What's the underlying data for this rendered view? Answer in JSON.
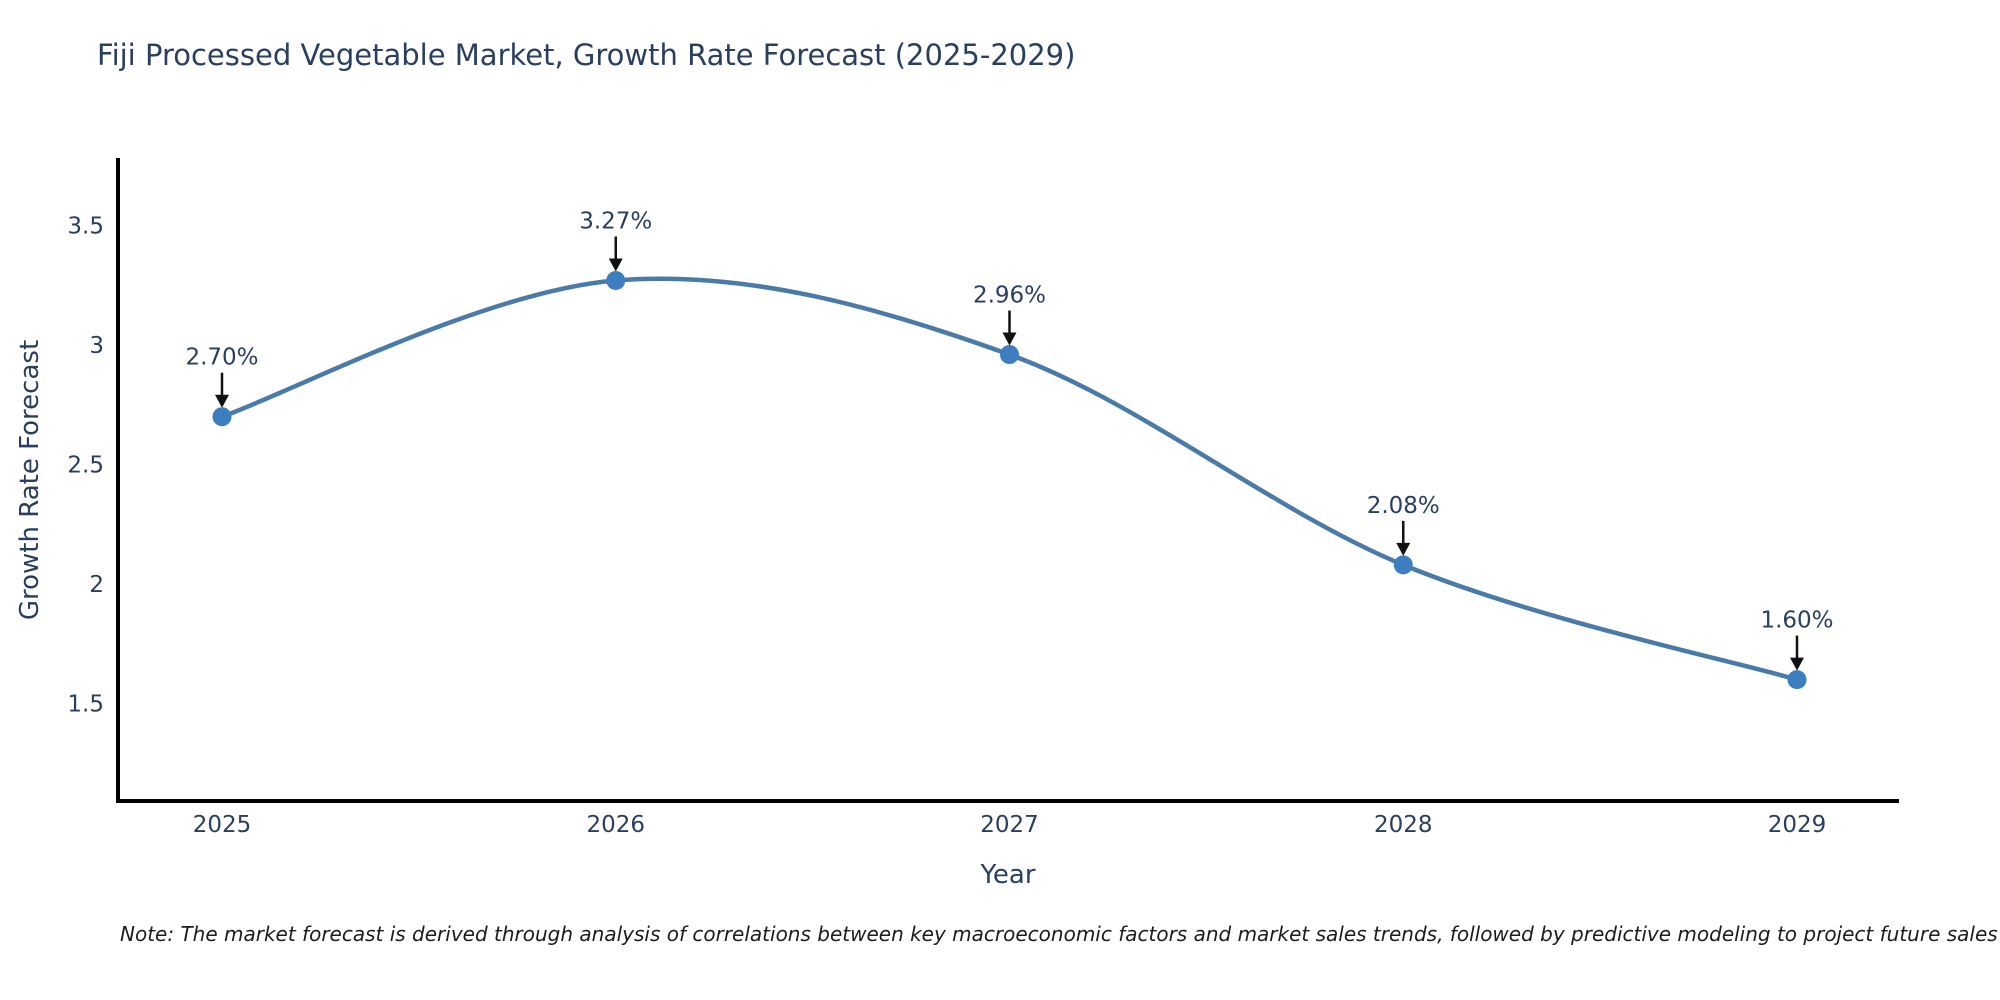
{
  "note": {
    "text": "Note: The market forecast is derived through analysis of correlations between key macroeconomic factors and market sales trends, followed by predictive modeling to project future sales"
  },
  "chart_data": {
    "type": "line",
    "title": "Fiji Processed Vegetable Market, Growth Rate Forecast (2025-2029)",
    "xlabel": "Year",
    "ylabel": "Growth Rate Forecast",
    "categories": [
      "2025",
      "2026",
      "2027",
      "2028",
      "2029"
    ],
    "values": [
      2.7,
      3.27,
      2.96,
      2.08,
      1.6
    ],
    "point_labels": [
      "2.70%",
      "3.27%",
      "2.96%",
      "2.08%",
      "1.60%"
    ],
    "yticks": [
      3.5,
      3,
      2.5,
      2,
      1.5
    ],
    "ytick_labels": [
      "3.5",
      "3",
      "2.5",
      "2",
      "1.5"
    ],
    "ylim": [
      1.1,
      3.78
    ],
    "grid": false,
    "legend": "none",
    "line_shape": "spline",
    "annotations_have_arrows": true,
    "colors": {
      "line": "#4a7aa8",
      "marker": "#3c7ebf",
      "axis": "#000000",
      "tick_text": "#2a3f5f",
      "annotation_text": "#2a3f5f",
      "annotation_arrow": "#111111"
    }
  }
}
